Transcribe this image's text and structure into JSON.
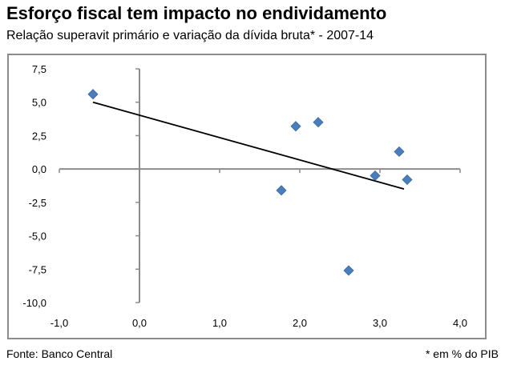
{
  "header": {
    "title": "Esforço fiscal tem impacto no endividamento",
    "subtitle": "Relação superavit primário e variação da dívida bruta* - 2007-14"
  },
  "footer": {
    "source": "Fonte: Banco Central",
    "note": "*  em % do PIB"
  },
  "chart_data": {
    "type": "scatter",
    "title": "Esforço fiscal tem impacto no endividamento",
    "subtitle": "Relação superavit primário e variação da dívida bruta* - 2007-14",
    "xlabel": "",
    "ylabel": "",
    "xlim": [
      -1.0,
      4.0
    ],
    "ylim": [
      -10.0,
      7.5
    ],
    "x_ticks": [
      "-1,0",
      "0,0",
      "1,0",
      "2,0",
      "3,0",
      "4,0"
    ],
    "x_tick_values": [
      -1.0,
      0.0,
      1.0,
      2.0,
      3.0,
      4.0
    ],
    "y_ticks": [
      "7,5",
      "5,0",
      "2,5",
      "0,0",
      "-2,5",
      "-5,0",
      "-7,5",
      "-10,0"
    ],
    "y_tick_values": [
      7.5,
      5.0,
      2.5,
      0.0,
      -2.5,
      -5.0,
      -7.5,
      -10.0
    ],
    "points": [
      {
        "x": -0.58,
        "y": 5.6
      },
      {
        "x": 1.77,
        "y": -1.6
      },
      {
        "x": 1.95,
        "y": 3.2
      },
      {
        "x": 2.23,
        "y": 3.5
      },
      {
        "x": 2.61,
        "y": -7.6
      },
      {
        "x": 2.94,
        "y": -0.5
      },
      {
        "x": 3.24,
        "y": 1.3
      },
      {
        "x": 3.34,
        "y": -0.8
      }
    ],
    "trendline": {
      "x": [
        -0.58,
        3.3
      ],
      "y": [
        5.0,
        -1.5
      ]
    },
    "grid": false,
    "legend": "none",
    "marker_color": "#4a7ebb",
    "trendline_color": "#000000",
    "axis_color": "#8c8c8c"
  }
}
